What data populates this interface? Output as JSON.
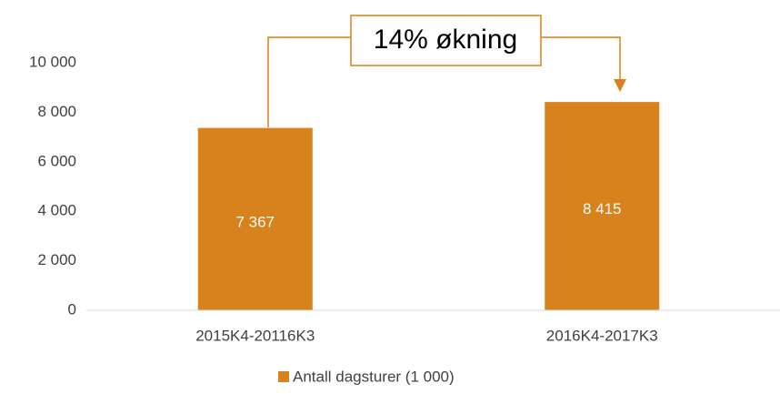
{
  "chart_data": {
    "type": "bar",
    "categories": [
      "2015K4-20116K3",
      "2016K4-2017K3"
    ],
    "series": [
      {
        "name": "Antall dagsturer (1 000)",
        "color": "#d7821c",
        "values": [
          7367,
          8415
        ],
        "value_labels": [
          "7 367",
          "8 415"
        ]
      }
    ],
    "ylim": [
      0,
      10000
    ],
    "yticks": [
      0,
      {
        "value": 2000,
        "label": "2 000"
      },
      {
        "value": 4000,
        "label": "4 000"
      },
      {
        "value": 6000,
        "label": "6 000"
      },
      {
        "value": 8000,
        "label": "8 000"
      },
      {
        "value": 10000,
        "label": "10 000"
      }
    ],
    "grid": false,
    "legend": "bottom",
    "annotation": "14% økning"
  }
}
